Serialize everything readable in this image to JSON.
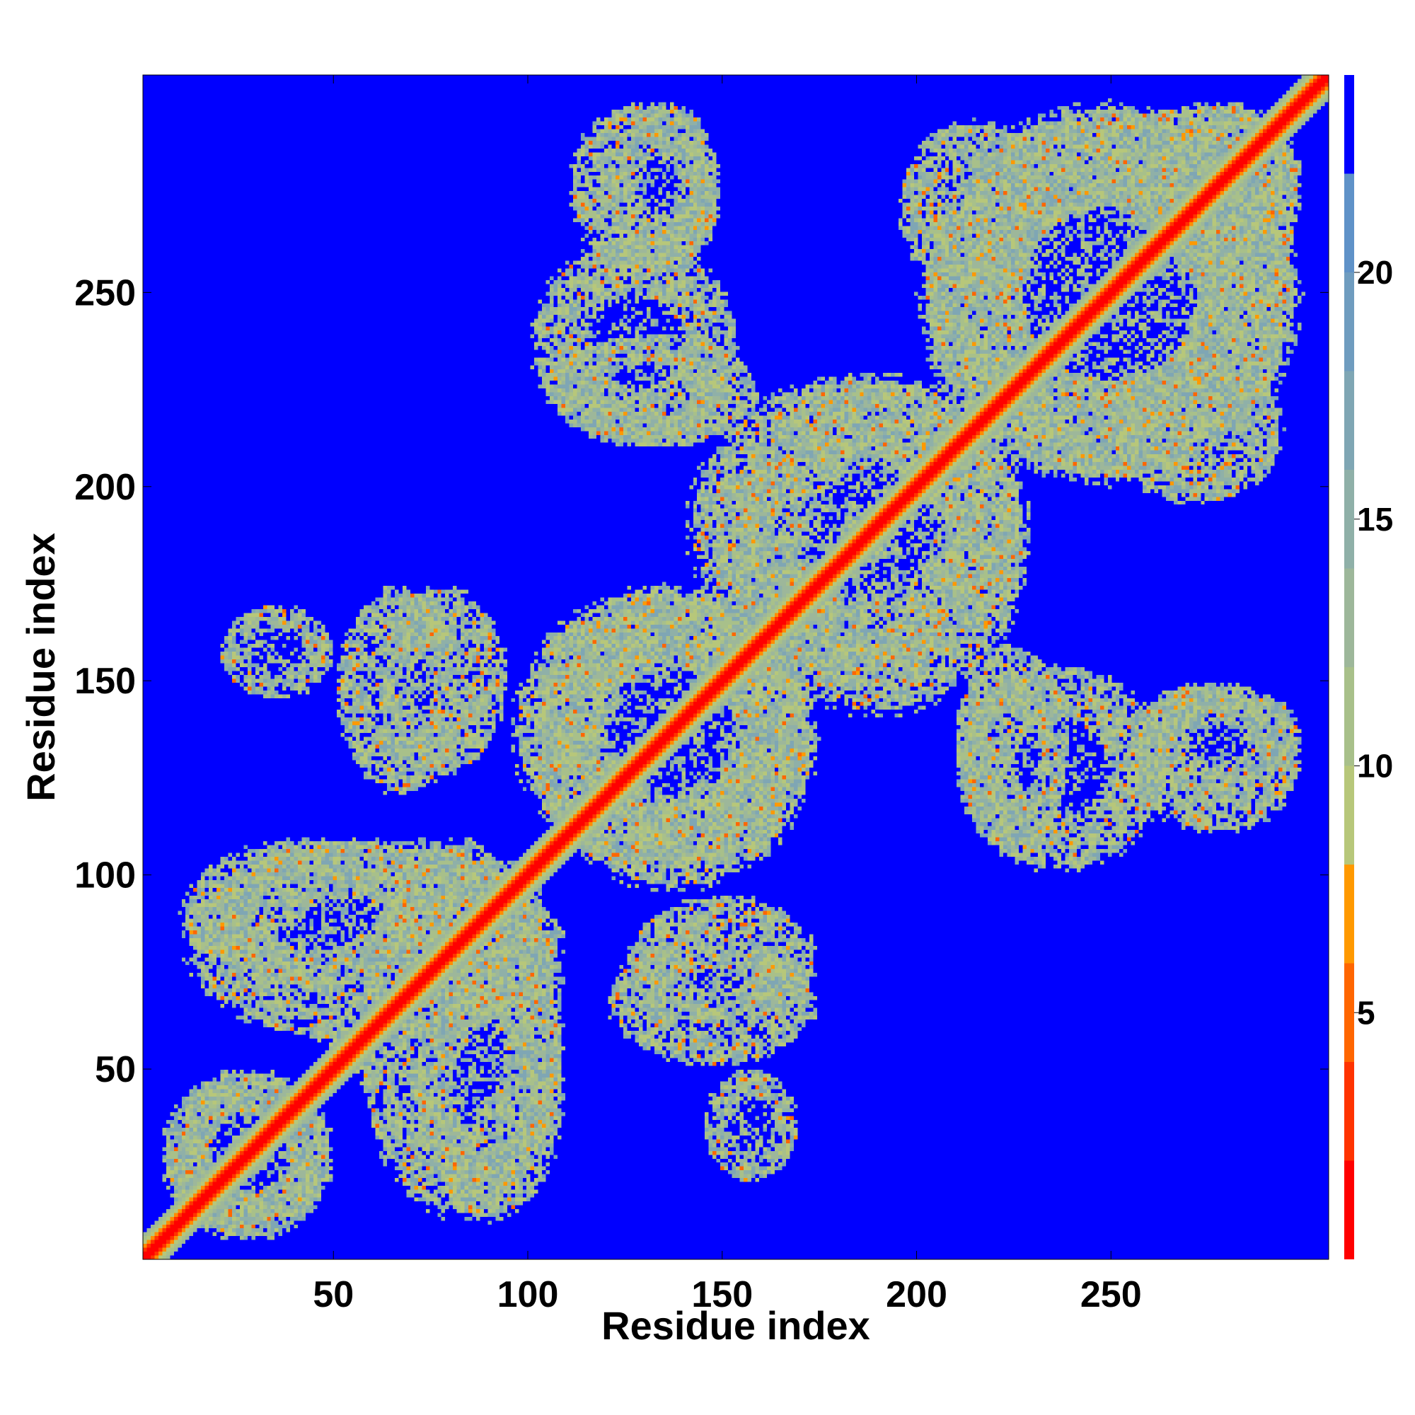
{
  "chart_data": {
    "type": "heatmap",
    "description_free": true,
    "x_label": "Residue index",
    "y_label": "Residue index",
    "x_range": [
      1,
      306
    ],
    "y_range": [
      1,
      306
    ],
    "x_ticks": [
      50,
      100,
      150,
      200,
      250
    ],
    "y_ticks": [
      50,
      100,
      150,
      200,
      250
    ],
    "x_tick_labels": [
      "50",
      "100",
      "150",
      "200",
      "250"
    ],
    "y_tick_labels": [
      "50",
      "100",
      "150",
      "200",
      "250"
    ],
    "colorbar": {
      "range": [
        0,
        24
      ],
      "ticks": [
        5,
        10,
        15,
        20
      ],
      "tick_labels": [
        "5",
        "10",
        "15",
        "20"
      ],
      "levels": [
        {
          "from": 0,
          "to": 2,
          "color": "#ff0000"
        },
        {
          "from": 2,
          "to": 4,
          "color": "#ff3300"
        },
        {
          "from": 4,
          "to": 6,
          "color": "#ff6600"
        },
        {
          "from": 6,
          "to": 8,
          "color": "#ff9900"
        },
        {
          "from": 8,
          "to": 10,
          "color": "#b7c77a"
        },
        {
          "from": 10,
          "to": 12,
          "color": "#a8c08a"
        },
        {
          "from": 12,
          "to": 14,
          "color": "#9db79a"
        },
        {
          "from": 14,
          "to": 16,
          "color": "#8fb0a8"
        },
        {
          "from": 16,
          "to": 18,
          "color": "#7fa6b4"
        },
        {
          "from": 18,
          "to": 20,
          "color": "#6f9cbf"
        },
        {
          "from": 20,
          "to": 22,
          "color": "#5f92c8"
        },
        {
          "from": 22,
          "to": 24,
          "color": "#0000ff"
        }
      ]
    },
    "colors": {
      "background": "#0000ff",
      "diagonal": "#ff0000",
      "near_contact": "#ff8c00",
      "mid_distance": "#a8c08a"
    },
    "contact_regions": [
      {
        "x": [
          5,
          50
        ],
        "y": [
          5,
          50
        ],
        "level": 10
      },
      {
        "x": [
          10,
          110
        ],
        "y": [
          55,
          110
        ],
        "level": 11
      },
      {
        "x": [
          70,
          110
        ],
        "y": [
          10,
          80
        ],
        "level": 11
      },
      {
        "x": [
          100,
          175
        ],
        "y": [
          95,
          175
        ],
        "level": 11
      },
      {
        "x": [
          150,
          230
        ],
        "y": [
          140,
          230
        ],
        "level": 11
      },
      {
        "x": [
          200,
          300
        ],
        "y": [
          200,
          300
        ],
        "level": 11
      },
      {
        "x": [
          125,
          175
        ],
        "y": [
          60,
          95
        ],
        "level": 12
      },
      {
        "x": [
          145,
          170
        ],
        "y": [
          20,
          50
        ],
        "level": 13
      },
      {
        "x": [
          210,
          265
        ],
        "y": [
          100,
          155
        ],
        "level": 12
      },
      {
        "x": [
          255,
          300
        ],
        "y": [
          110,
          150
        ],
        "level": 12
      },
      {
        "x": [
          50,
          85
        ],
        "y": [
          120,
          175
        ],
        "level": 12
      },
      {
        "x": [
          105,
          160
        ],
        "y": [
          210,
          240
        ],
        "level": 12
      },
      {
        "x": [
          120,
          150
        ],
        "y": [
          255,
          300
        ],
        "level": 12
      },
      {
        "x": [
          250,
          295
        ],
        "y": [
          195,
          235
        ],
        "level": 12
      },
      {
        "x": [
          260,
          300
        ],
        "y": [
          250,
          300
        ],
        "level": 12
      }
    ]
  }
}
